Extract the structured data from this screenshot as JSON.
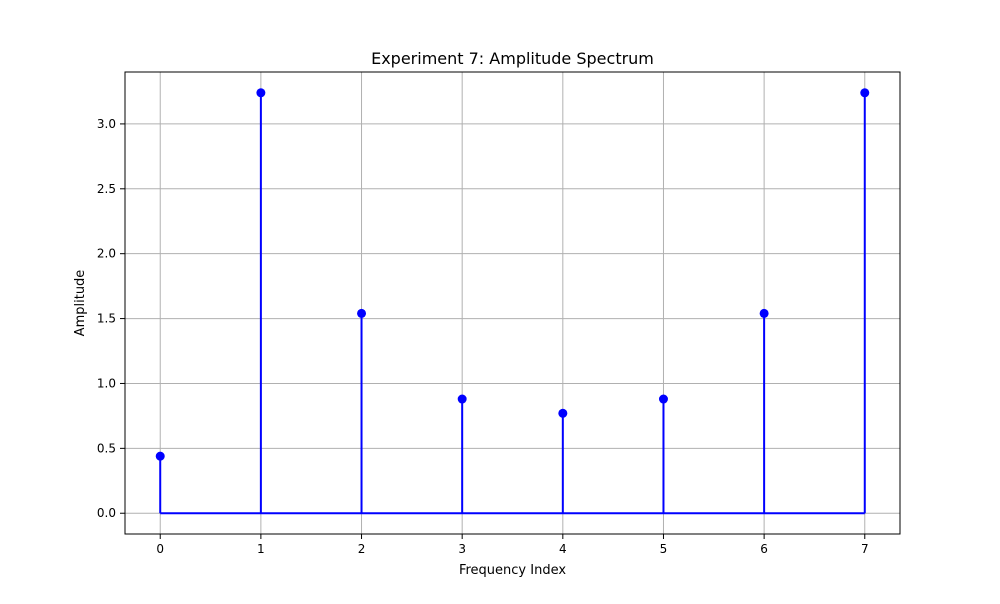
{
  "chart_data": {
    "type": "stem",
    "title": "Experiment 7: Amplitude Spectrum",
    "xlabel": "Frequency Index",
    "ylabel": "Amplitude",
    "x": [
      0,
      1,
      2,
      3,
      4,
      5,
      6,
      7
    ],
    "values": [
      0.44,
      3.24,
      1.54,
      0.88,
      0.77,
      0.88,
      1.54,
      3.24
    ],
    "xlim": [
      -0.35,
      7.35
    ],
    "ylim": [
      -0.16,
      3.4
    ],
    "xticks": [
      0,
      1,
      2,
      3,
      4,
      5,
      6,
      7
    ],
    "yticks": [
      0.0,
      0.5,
      1.0,
      1.5,
      2.0,
      2.5,
      3.0
    ],
    "xtick_labels": [
      "0",
      "1",
      "2",
      "3",
      "4",
      "5",
      "6",
      "7"
    ],
    "ytick_labels": [
      "0.0",
      "0.5",
      "1.0",
      "1.5",
      "2.0",
      "2.5",
      "3.0"
    ],
    "grid": true,
    "colors": {
      "stem": "#0000ff",
      "marker": "#0000ff",
      "baseline": "#0000ff",
      "grid": "#b0b0b0",
      "axes": "#000000"
    }
  }
}
